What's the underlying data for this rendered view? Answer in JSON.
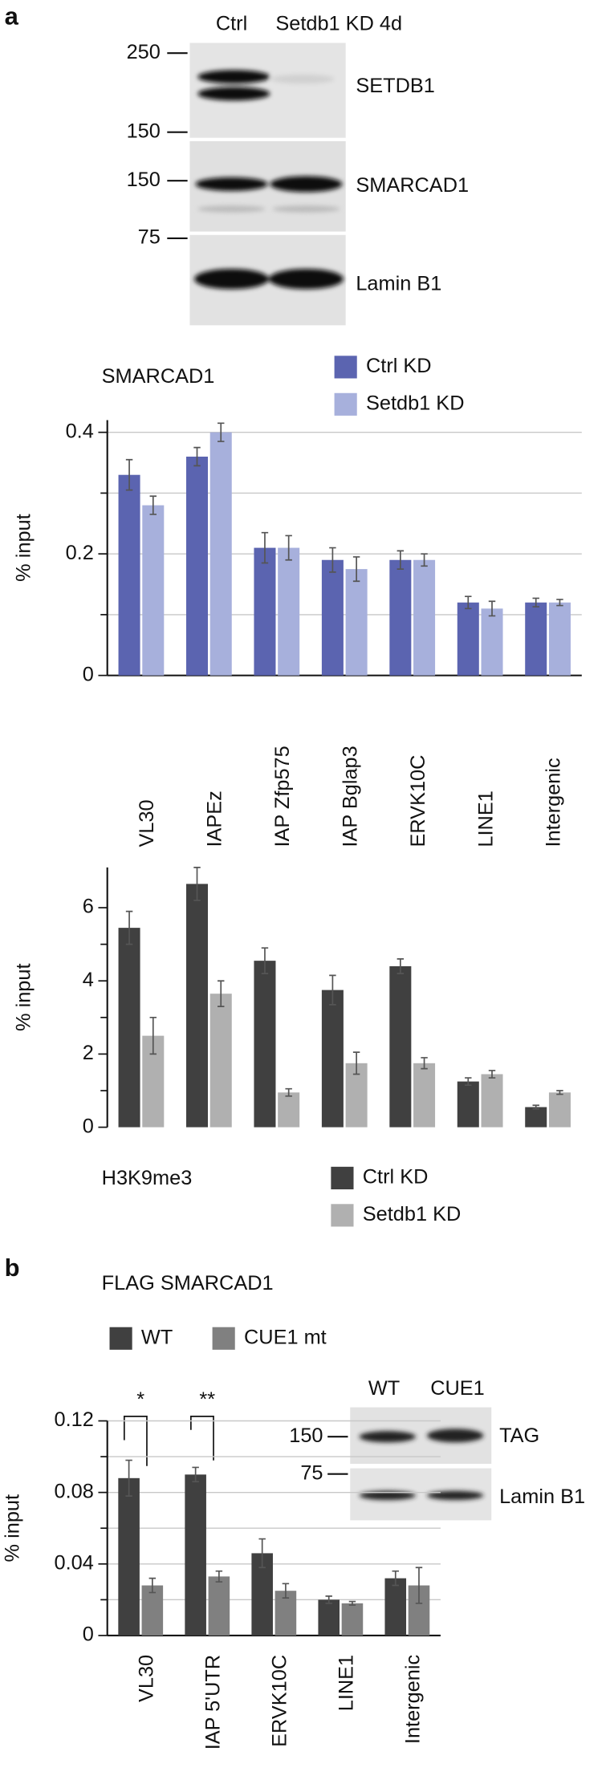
{
  "panel_a": {
    "label": "a",
    "blot": {
      "lanes": [
        "Ctrl",
        "Setdb1 KD 4d"
      ],
      "markers": [
        250,
        150,
        150,
        75
      ],
      "rows": [
        "SETDB1",
        "SMARCAD1",
        "Lamin B1"
      ]
    }
  },
  "chart_data": [
    {
      "type": "bar",
      "title": "SMARCAD1",
      "ylabel": "% input",
      "categories": [
        "VL30",
        "IAPEz",
        "IAP Zfp575",
        "IAP Bglap3",
        "ERVK10C",
        "LINE1",
        "Intergenic"
      ],
      "series": [
        {
          "name": "Ctrl KD",
          "color": "#5b64b0",
          "values": [
            0.33,
            0.36,
            0.21,
            0.19,
            0.19,
            0.12,
            0.12
          ],
          "errors": [
            0.025,
            0.015,
            0.025,
            0.02,
            0.015,
            0.01,
            0.007
          ]
        },
        {
          "name": "Setdb1 KD",
          "color": "#a7b0dc",
          "values": [
            0.28,
            0.4,
            0.21,
            0.175,
            0.19,
            0.11,
            0.12
          ],
          "errors": [
            0.015,
            0.015,
            0.02,
            0.02,
            0.01,
            0.012,
            0.005
          ]
        }
      ],
      "ylim": [
        0,
        0.42
      ],
      "yticks": [
        0,
        0.2,
        0.4
      ],
      "minor_yticks": [
        0.1,
        0.3
      ],
      "grid": true
    },
    {
      "type": "bar",
      "title": "H3K9me3",
      "ylabel": "% input",
      "series": [
        {
          "name": "Ctrl KD",
          "color": "#404040",
          "values": [
            5.45,
            6.65,
            4.55,
            3.75,
            4.4,
            1.25,
            0.55
          ],
          "errors": [
            0.45,
            0.45,
            0.35,
            0.4,
            0.2,
            0.1,
            0.05
          ]
        },
        {
          "name": "Setdb1 KD",
          "color": "#b0b0b0",
          "values": [
            2.5,
            3.65,
            0.95,
            1.75,
            1.75,
            1.45,
            0.95
          ],
          "errors": [
            0.5,
            0.35,
            0.1,
            0.3,
            0.15,
            0.1,
            0.05
          ]
        }
      ],
      "ylim": [
        0,
        7.1
      ],
      "yticks": [
        0,
        2,
        4,
        6
      ],
      "minor_yticks": [
        1,
        3,
        5
      ],
      "grid": false
    },
    {
      "type": "bar",
      "title": "FLAG SMARCAD1",
      "ylabel": "% input",
      "categories": [
        "VL30",
        "IAP 5'UTR",
        "ERVK10C",
        "LINE1",
        "Intergenic"
      ],
      "series": [
        {
          "name": "WT",
          "color": "#404040",
          "values": [
            0.088,
            0.09,
            0.046,
            0.02,
            0.032
          ],
          "errors": [
            0.01,
            0.004,
            0.008,
            0.002,
            0.004
          ]
        },
        {
          "name": "CUE1 mt",
          "color": "#808080",
          "values": [
            0.028,
            0.033,
            0.025,
            0.018,
            0.028
          ],
          "errors": [
            0.004,
            0.003,
            0.004,
            0.001,
            0.01
          ]
        }
      ],
      "ylim": [
        0,
        0.12
      ],
      "yticks": [
        0,
        0.04,
        0.08,
        0.12
      ],
      "minor_yticks": [
        0.02,
        0.06,
        0.1
      ],
      "grid": true,
      "annotations": [
        "*",
        "**"
      ]
    }
  ],
  "panel_b": {
    "label": "b",
    "blot": {
      "lanes": [
        "WT",
        "CUE1"
      ],
      "markers": [
        150,
        75
      ],
      "rows": [
        "TAG",
        "Lamin B1"
      ]
    }
  }
}
